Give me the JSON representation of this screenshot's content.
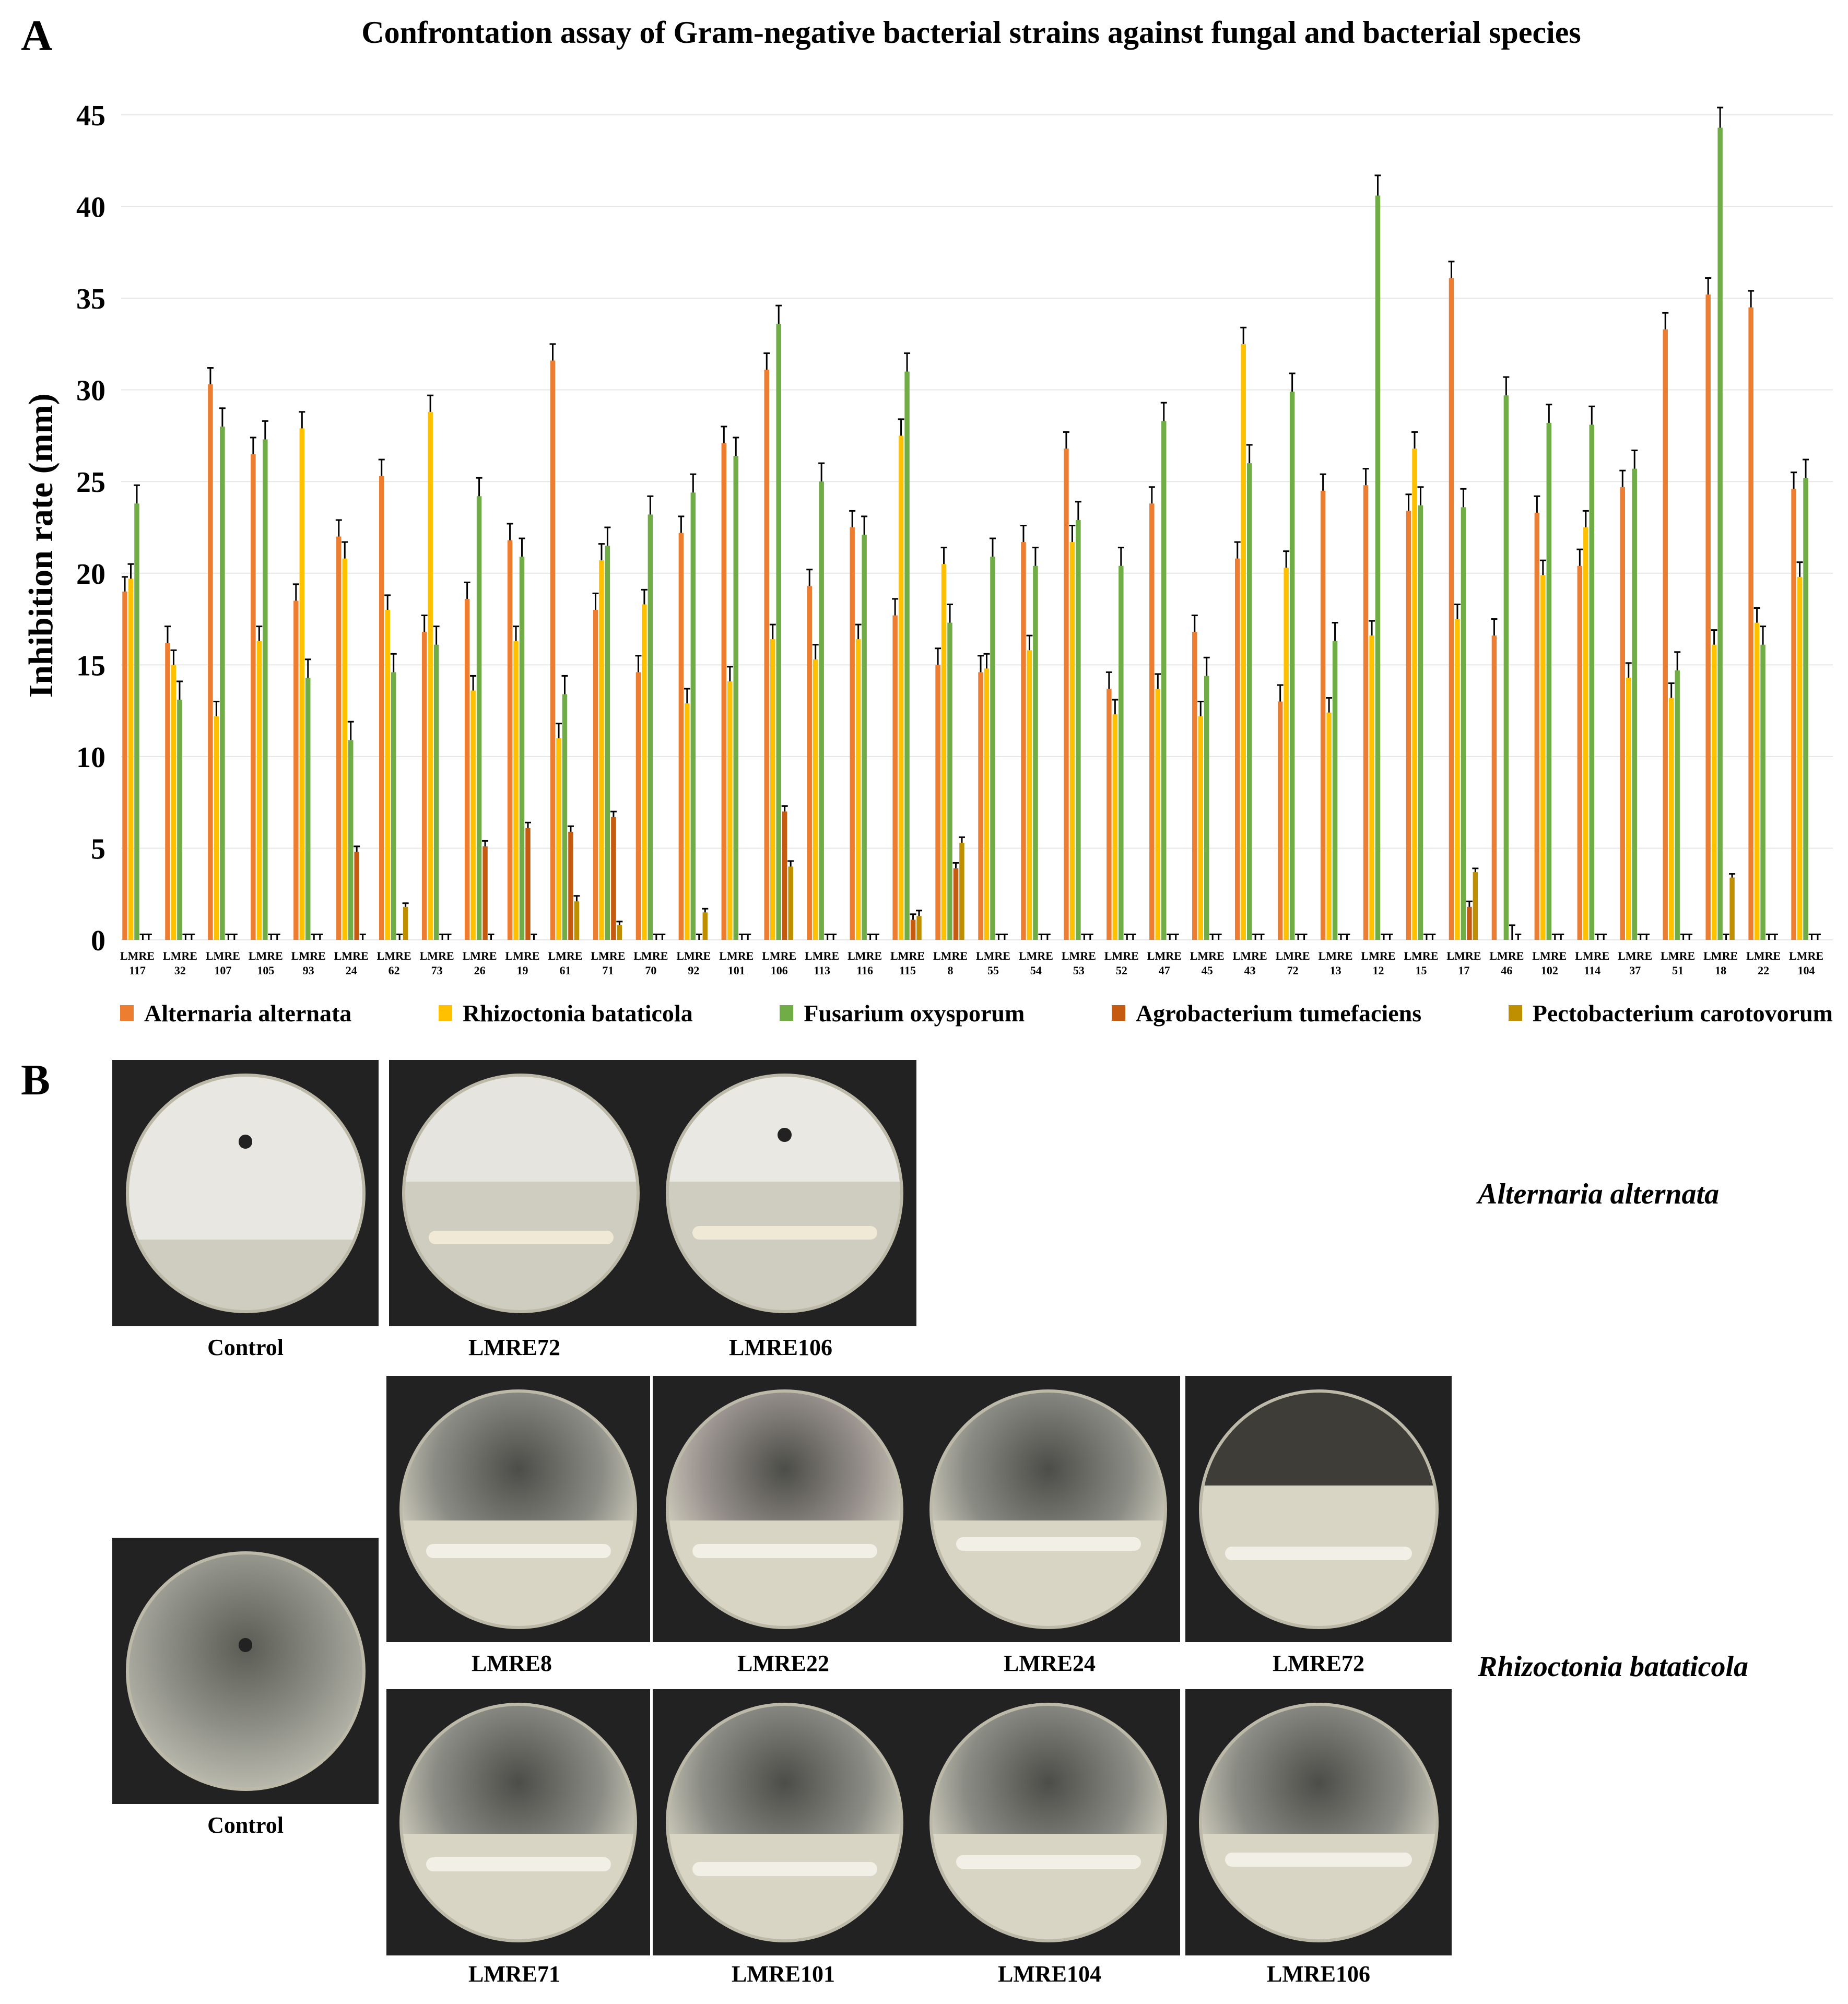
{
  "panel_a_letter": "A",
  "panel_b_letter": "B",
  "chart_data": {
    "type": "bar",
    "title": "Confrontation assay of Gram-negative bacterial strains against fungal and bacterial species",
    "ylabel": "Inhibition rate (mm)",
    "xlabel": "",
    "ylim": [
      0,
      45
    ],
    "yticks": [
      0,
      5,
      10,
      15,
      20,
      25,
      30,
      35,
      40,
      45
    ],
    "category_prefix": "LMRE",
    "categories": [
      "117",
      "32",
      "107",
      "105",
      "93",
      "24",
      "62",
      "73",
      "26",
      "19",
      "61",
      "71",
      "70",
      "92",
      "101",
      "106",
      "113",
      "116",
      "115",
      "8",
      "55",
      "54",
      "53",
      "52",
      "47",
      "45",
      "43",
      "72",
      "13",
      "12",
      "15",
      "17",
      "46",
      "102",
      "114",
      "37",
      "51",
      "18",
      "22",
      "104"
    ],
    "series": [
      {
        "name": "Alternaria alternata",
        "color": "#ED7D31",
        "values": [
          19,
          16.2,
          30.3,
          26.5,
          18.5,
          22,
          25.3,
          16.8,
          18.6,
          21.8,
          31.6,
          18,
          14.6,
          22.2,
          27.1,
          31.1,
          19.3,
          22.5,
          17.7,
          15,
          14.6,
          21.7,
          26.8,
          13.7,
          23.8,
          16.8,
          20.8,
          13,
          24.5,
          24.8,
          23.4,
          36.1,
          16.6,
          23.3,
          20.4,
          24.7,
          33.3,
          35.2,
          34.5,
          24.6
        ],
        "errors": [
          0.8,
          0.9,
          0.9,
          0.9,
          0.9,
          0.9,
          0.9,
          0.9,
          0.9,
          0.9,
          0.9,
          0.9,
          0.9,
          0.9,
          0.9,
          0.9,
          0.9,
          0.9,
          0.9,
          0.9,
          0.9,
          0.9,
          0.9,
          0.9,
          0.9,
          0.9,
          0.9,
          0.9,
          0.9,
          0.9,
          0.9,
          0.9,
          0.9,
          0.9,
          0.9,
          0.9,
          0.9,
          0.9,
          0.9,
          0.9
        ]
      },
      {
        "name": "Rhizoctonia bataticola",
        "color": "#FFC000",
        "values": [
          19.7,
          15,
          12.2,
          16.3,
          27.9,
          20.8,
          18,
          28.8,
          13.6,
          16.3,
          11,
          20.7,
          18.3,
          12.9,
          14.1,
          16.4,
          15.3,
          16.4,
          27.5,
          20.5,
          14.8,
          15.8,
          21.7,
          12.3,
          13.7,
          12.2,
          32.5,
          20.3,
          12.4,
          16.6,
          26.8,
          17.5,
          0,
          19.9,
          22.5,
          14.3,
          13.2,
          16.1,
          17.3,
          19.8
        ],
        "errors": [
          0.8,
          0.8,
          0.8,
          0.8,
          0.9,
          0.9,
          0.8,
          0.9,
          0.8,
          0.8,
          0.8,
          0.9,
          0.8,
          0.8,
          0.8,
          0.8,
          0.8,
          0.8,
          0.9,
          0.9,
          0.8,
          0.8,
          0.9,
          0.8,
          0.8,
          0.8,
          0.9,
          0.9,
          0.8,
          0.8,
          0.9,
          0.8,
          0,
          0.8,
          0.9,
          0.8,
          0.8,
          0.8,
          0.8,
          0.8
        ]
      },
      {
        "name": "Fusarium oxysporum",
        "color": "#70AD47",
        "values": [
          23.8,
          13.1,
          28,
          27.3,
          14.3,
          10.9,
          14.6,
          16.1,
          24.2,
          20.9,
          13.4,
          21.5,
          23.2,
          24.4,
          26.4,
          33.6,
          25,
          22.1,
          31,
          17.3,
          20.9,
          20.4,
          22.9,
          20.4,
          28.3,
          14.4,
          26,
          29.9,
          16.3,
          40.6,
          23.7,
          23.6,
          29.7,
          28.2,
          28.1,
          25.7,
          14.7,
          44.3,
          16.1,
          25.2
        ],
        "errors": [
          1,
          1,
          1,
          1,
          1,
          1,
          1,
          1,
          1,
          1,
          1,
          1,
          1,
          1,
          1,
          1,
          1,
          1,
          1,
          1,
          1,
          1,
          1,
          1,
          1,
          1,
          1,
          1,
          1,
          1.1,
          1,
          1,
          1,
          1,
          1,
          1,
          1,
          1.1,
          1,
          1
        ]
      },
      {
        "name": "Agrobacterium tumefaciens",
        "color": "#C55A11",
        "values": [
          0,
          0,
          0,
          0,
          0,
          4.8,
          0,
          0,
          5.1,
          6.1,
          5.9,
          6.7,
          0,
          0,
          0,
          7,
          0,
          0,
          1.1,
          3.9,
          0,
          0,
          0,
          0,
          0,
          0,
          0,
          0,
          0,
          0,
          0,
          1.8,
          0,
          0,
          0,
          0,
          0,
          0,
          0,
          0
        ],
        "errors": [
          0.3,
          0.3,
          0.3,
          0.3,
          0.3,
          0.3,
          0.3,
          0.3,
          0.3,
          0.3,
          0.3,
          0.3,
          0.3,
          0.3,
          0.3,
          0.3,
          0.3,
          0.3,
          0.3,
          0.3,
          0.3,
          0.3,
          0.3,
          0.3,
          0.3,
          0.3,
          0.3,
          0.3,
          0.3,
          0.3,
          0.3,
          0.3,
          0.8,
          0.3,
          0.3,
          0.3,
          0.3,
          0.3,
          0.3,
          0.3
        ]
      },
      {
        "name": "Pectobacterium carotovorum",
        "color": "#BF8F00",
        "values": [
          0,
          0,
          0,
          0,
          0,
          0,
          1.8,
          0,
          0,
          0,
          2.1,
          0.8,
          0,
          1.5,
          0,
          4,
          0,
          0,
          1.3,
          5.3,
          0,
          0,
          0,
          0,
          0,
          0,
          0,
          0,
          0,
          0,
          0,
          3.7,
          0,
          0,
          0,
          0,
          0,
          3.4,
          0,
          0
        ],
        "errors": [
          0.3,
          0.3,
          0.3,
          0.3,
          0.3,
          0.3,
          0.2,
          0.3,
          0.3,
          0.3,
          0.3,
          0.2,
          0.3,
          0.2,
          0.3,
          0.3,
          0.3,
          0.3,
          0.3,
          0.3,
          0.3,
          0.3,
          0.3,
          0.3,
          0.3,
          0.3,
          0.3,
          0.3,
          0.3,
          0.3,
          0.3,
          0.2,
          0.3,
          0.3,
          0.3,
          0.3,
          0.3,
          0.2,
          0.3,
          0.3
        ]
      }
    ],
    "legend_position": "bottom"
  },
  "panel_b": {
    "species_1": "Alternaria alternata",
    "species_2": "Rhizoctonia bataticola",
    "alternaria_labels": [
      "Control",
      "LMRE72",
      "LMRE106"
    ],
    "rhizoctonia_control_label": "Control",
    "rhizoctonia_row1_labels": [
      "LMRE8",
      "LMRE22",
      "LMRE24",
      "LMRE72"
    ],
    "rhizoctonia_row2_labels": [
      "LMRE71",
      "LMRE101",
      "LMRE104",
      "LMRE106"
    ]
  }
}
